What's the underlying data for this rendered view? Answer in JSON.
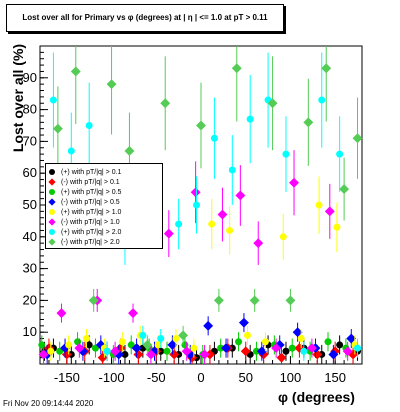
{
  "chart_data": {
    "type": "scatter",
    "title": "Lost over all for Primary vs φ (degrees) at | η | <= 1.0 at pT > 0.11",
    "xlabel": "φ (degrees)",
    "ylabel": "Lost over all (%)",
    "xlim": [
      -180,
      180
    ],
    "ylim": [
      0,
      100
    ],
    "x_ticks": [
      -150,
      -100,
      -50,
      0,
      50,
      100,
      150
    ],
    "y_ticks": [
      10,
      20,
      30,
      40,
      50,
      60,
      70,
      80,
      90
    ],
    "grid": false,
    "legend_position": "middle-left",
    "series": [
      {
        "name": "(+) with pT/|q| > 0.1",
        "color": "#000000",
        "x": [
          -175,
          -165,
          -145,
          -125,
          -105,
          -85,
          -65,
          -45,
          -25,
          -5,
          15,
          35,
          55,
          75,
          95,
          115,
          135,
          155,
          175
        ],
        "y": [
          4,
          5,
          3,
          6,
          4,
          3,
          5,
          4,
          3,
          2,
          4,
          5,
          3,
          6,
          4,
          5,
          3,
          6,
          4
        ]
      },
      {
        "name": "(-) with pT/|q| > 0.1",
        "color": "#ff0000",
        "x": [
          -170,
          -150,
          -130,
          -110,
          -90,
          -70,
          -50,
          -30,
          -10,
          10,
          30,
          50,
          70,
          90,
          110,
          130,
          150,
          170
        ],
        "y": [
          5,
          3,
          4,
          2,
          5,
          3,
          4,
          3,
          2,
          3,
          5,
          4,
          3,
          2,
          5,
          3,
          4,
          3
        ]
      },
      {
        "name": "(+) with pT/|q| > 0.5",
        "color": "#00cc00",
        "x": [
          -178,
          -158,
          -138,
          -118,
          -98,
          -78,
          -58,
          -38,
          -18,
          2,
          22,
          42,
          62,
          82,
          102,
          122,
          142,
          162
        ],
        "y": [
          6,
          4,
          7,
          5,
          3,
          6,
          5,
          4,
          6,
          3,
          5,
          7,
          4,
          6,
          5,
          4,
          7,
          5
        ]
      },
      {
        "name": "(-) with pT/|q| > 0.5",
        "color": "#0000ff",
        "x": [
          -172,
          -152,
          -132,
          -112,
          -92,
          -72,
          -52,
          -32,
          -12,
          8,
          28,
          48,
          68,
          88,
          108,
          128,
          148,
          168
        ],
        "y": [
          3,
          5,
          4,
          6,
          3,
          5,
          4,
          6,
          3,
          12,
          5,
          13,
          4,
          6,
          10,
          5,
          3,
          8
        ]
      },
      {
        "name": "(+) with pT/|q| > 1.0",
        "color": "#ffff00",
        "x": [
          -168,
          -148,
          -128,
          -108,
          -88,
          -68,
          -48,
          -28,
          -8,
          12,
          32,
          52,
          72,
          92,
          112,
          132,
          152,
          172
        ],
        "y": [
          4,
          6,
          8,
          5,
          7,
          9,
          6,
          8,
          5,
          44,
          42,
          9,
          7,
          40,
          8,
          50,
          43,
          6
        ]
      },
      {
        "name": "(-) with pT/|q| > 1.0",
        "color": "#ff00ff",
        "x": [
          -176,
          -156,
          -136,
          -116,
          -96,
          -76,
          -56,
          -36,
          -16,
          -6,
          4,
          24,
          44,
          64,
          84,
          104,
          124,
          144,
          164
        ],
        "y": [
          3,
          16,
          5,
          20,
          4,
          16,
          3,
          41,
          4,
          54,
          3,
          47,
          53,
          38,
          5,
          57,
          5,
          48,
          4
        ]
      },
      {
        "name": "(+) with pT/|q| > 2.0",
        "color": "#00ffff",
        "x": [
          -165,
          -145,
          -125,
          -105,
          -85,
          -65,
          -45,
          -25,
          -5,
          15,
          35,
          55,
          75,
          95,
          115,
          135,
          155,
          175
        ],
        "y": [
          83,
          67,
          75,
          4,
          38,
          9,
          8,
          44,
          50,
          71,
          61,
          77,
          83,
          66,
          4,
          83,
          66,
          5
        ]
      },
      {
        "name": "(-) with pT/|q| > 2.0",
        "color": "#55cc55",
        "x": [
          -160,
          -140,
          -120,
          -100,
          -80,
          -60,
          -40,
          -20,
          0,
          20,
          40,
          60,
          80,
          100,
          120,
          140,
          160,
          175
        ],
        "y": [
          74,
          92,
          20,
          88,
          67,
          6,
          82,
          9,
          75,
          20,
          93,
          20,
          82,
          20,
          76,
          93,
          55,
          71
        ]
      }
    ]
  },
  "footer": {
    "date": "Fri Nov 20 09:14:44 2020"
  }
}
